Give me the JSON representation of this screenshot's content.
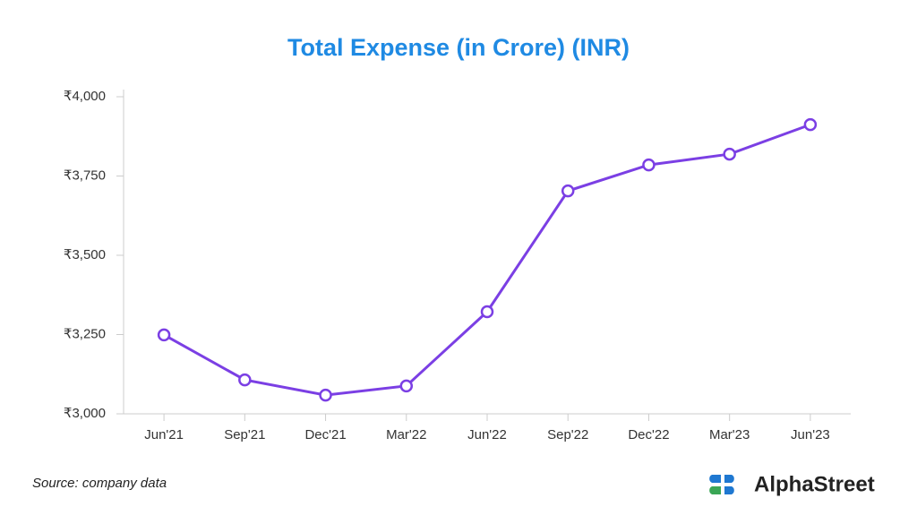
{
  "chart_data": {
    "type": "line",
    "title": "Total Expense (in Crore) (INR)",
    "categories": [
      "Jun'21",
      "Sep'21",
      "Dec'21",
      "Mar'22",
      "Jun'22",
      "Sep'22",
      "Dec'22",
      "Mar'23",
      "Jun'23"
    ],
    "series": [
      {
        "name": "Total Expense",
        "color": "#7b3fe4",
        "values": [
          3249,
          3107,
          3059,
          3088,
          3322,
          3703,
          3785,
          3819,
          3912
        ]
      }
    ],
    "ylim": [
      3000,
      4000
    ],
    "yticks": [
      {
        "value": 3000,
        "label": "₹3,000"
      },
      {
        "value": 3250,
        "label": "₹3,250"
      },
      {
        "value": 3500,
        "label": "₹3,500"
      },
      {
        "value": 3750,
        "label": "₹3,750"
      },
      {
        "value": 4000,
        "label": "₹4,000"
      }
    ],
    "grid": false,
    "source": "Source: company data",
    "brand": "AlphaStreet"
  }
}
